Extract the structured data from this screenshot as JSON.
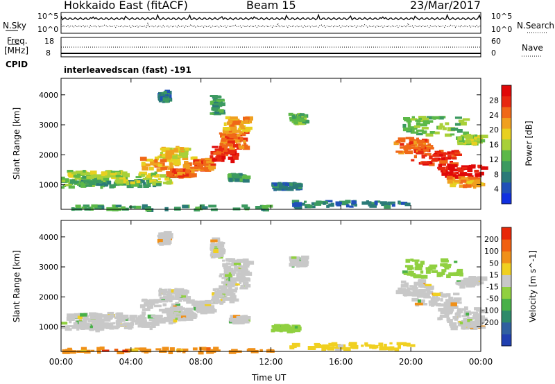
{
  "header": {
    "station": "Hokkaido East (fitACF)",
    "beam": "Beam 15",
    "date": "23/Mar/2017"
  },
  "panels": {
    "nsky_label": "N.Sky",
    "nsearch_label": "N.Search",
    "freq_label_1": "Freq.",
    "freq_label_2": "[MHz]",
    "nave_label": "Nave",
    "cpid_label": "CPID",
    "cpid_value": "interleavedscan (fast) -191",
    "noise_ticks_left": [
      "10^5",
      "10^0"
    ],
    "noise_ticks_right": [
      "10^5",
      "10^0"
    ],
    "freq_ticks": [
      "18",
      "8"
    ],
    "nave_ticks": [
      "60",
      "0"
    ]
  },
  "chart_data": [
    {
      "type": "heatmap",
      "name_panel": "power",
      "ylabel": "Slant Range [km]",
      "yticks": [
        1000,
        2000,
        3000,
        4000
      ],
      "ylim": [
        180,
        4550
      ],
      "colorbar_label": "Power [dB]",
      "colorbar_ticks": [
        4,
        8,
        12,
        16,
        20,
        24,
        28
      ],
      "colorbar_range": [
        0,
        32
      ],
      "colorbar_colors": [
        "#1030e0",
        "#2050b8",
        "#2a7a78",
        "#3c9a60",
        "#5cb848",
        "#a8d038",
        "#e8d020",
        "#f0a020",
        "#f06818",
        "#e82810",
        "#e00808"
      ]
    },
    {
      "type": "heatmap",
      "name_panel": "velocity",
      "ylabel": "Slant Range [km]",
      "yticks": [
        1000,
        2000,
        3000,
        4000
      ],
      "ylim": [
        180,
        4550
      ],
      "colorbar_label": "Velocity [m s^-1]",
      "colorbar_ticks": [
        200,
        100,
        50,
        15,
        -15,
        -50,
        -100,
        -200
      ],
      "colorbar_colors": [
        "#2040b0",
        "#3060a0",
        "#2e8a6a",
        "#48b048",
        "#90d040",
        "#c8c8c8",
        "#f0d020",
        "#f09018",
        "#f06010",
        "#e82808"
      ]
    }
  ],
  "xaxis": {
    "label": "Time UT",
    "ticks": [
      "00:00",
      "04:00",
      "08:00",
      "12:00",
      "16:00",
      "20:00",
      "00:00"
    ],
    "range_hours": [
      0,
      24
    ]
  }
}
